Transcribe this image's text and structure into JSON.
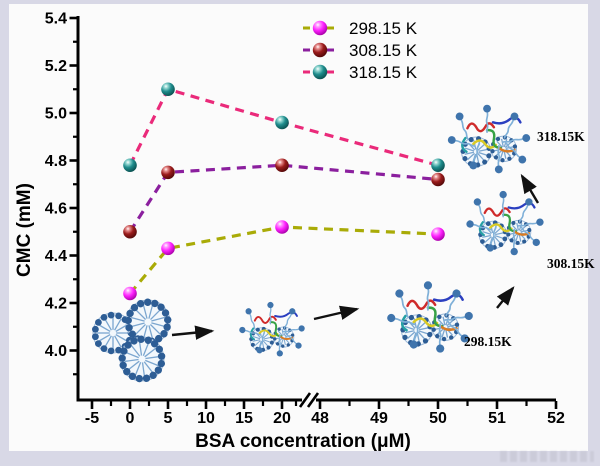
{
  "chart_data": {
    "type": "line",
    "title": "",
    "xlabel": "BSA concentration (μM)",
    "ylabel": "CMC (mM)",
    "x": [
      0,
      5,
      20,
      50
    ],
    "x_axis": {
      "left_ticks": [
        -5,
        0,
        5,
        10,
        15,
        20
      ],
      "right_ticks": [
        48,
        49,
        50,
        51,
        52
      ],
      "break": true
    },
    "y_axis": {
      "ticks": [
        4.0,
        4.2,
        4.4,
        4.6,
        4.8,
        5.0,
        5.2,
        5.4
      ],
      "range": [
        3.88,
        5.4
      ]
    },
    "grid": false,
    "legend_position": "top-center",
    "series": [
      {
        "name": "298.15 K",
        "line_color": "#a9ab07",
        "marker_color": "#ff22ff",
        "marker_gradient": [
          "#ffffff",
          "#ff9bff",
          "#ff22ff",
          "#a800a8"
        ],
        "values": [
          4.24,
          4.43,
          4.52,
          4.49
        ]
      },
      {
        "name": "308.15 K",
        "line_color": "#8b1f9e",
        "marker_color": "#9b1c1c",
        "marker_gradient": [
          "#ffffff",
          "#e89090",
          "#9b1c1c",
          "#520808"
        ],
        "values": [
          4.5,
          4.75,
          4.78,
          4.72
        ]
      },
      {
        "name": "318.15 K",
        "line_color": "#ea2a7a",
        "marker_color": "#1f8d8d",
        "marker_gradient": [
          "#ffffff",
          "#9adbd5",
          "#1f8d8d",
          "#0a4f4f"
        ],
        "values": [
          4.78,
          5.1,
          4.96,
          4.78
        ]
      }
    ]
  },
  "annotations": {
    "t298": "298.15K",
    "t308": "308.15K",
    "t318": "318.15K"
  }
}
